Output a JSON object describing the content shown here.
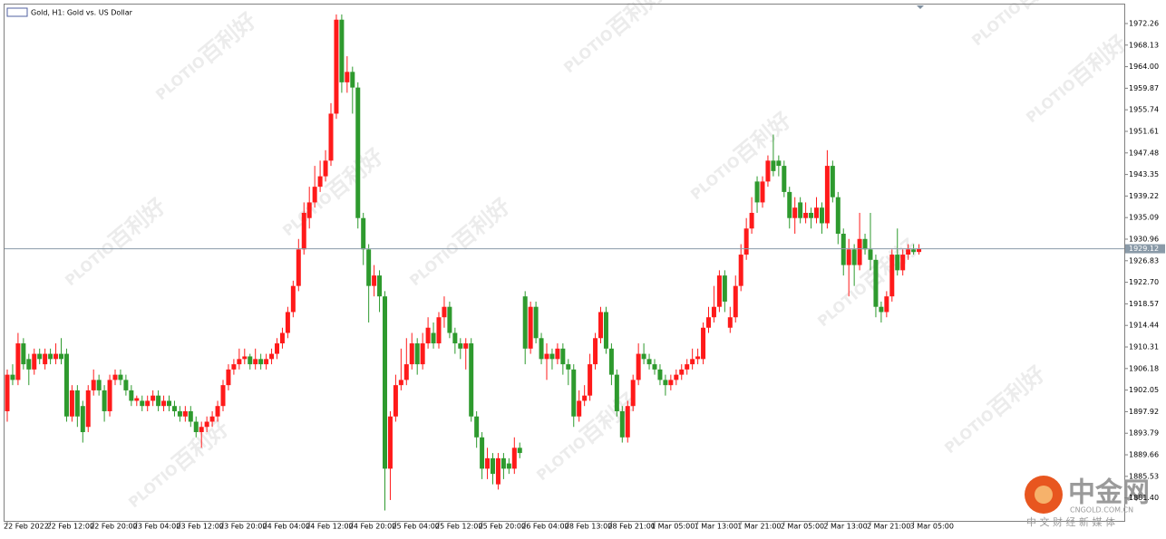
{
  "chart_data": {
    "type": "candlestick",
    "title": "Gold, H1: Gold vs. US Dollar",
    "categories": [
      "22 Feb 2022",
      null,
      null,
      null,
      null,
      null,
      null,
      null,
      "22 Feb 12:00",
      null,
      null,
      null,
      null,
      null,
      null,
      null,
      "22 Feb 20:00",
      null,
      null,
      null,
      null,
      null,
      null,
      null,
      "23 Feb 04:00",
      null,
      null,
      null,
      null,
      null,
      null,
      null,
      "23 Feb 12:00",
      null,
      null,
      null,
      null,
      null,
      null,
      null,
      "23 Feb 20:00",
      null,
      null,
      null,
      null,
      null,
      null,
      null,
      "24 Feb 04:00",
      null,
      null,
      null,
      null,
      null,
      null,
      null,
      "24 Feb 12:00",
      null,
      null,
      null,
      null,
      null,
      null,
      null,
      "24 Feb 20:00",
      null,
      null,
      null,
      null,
      null,
      null,
      null,
      "25 Feb 04:00",
      null,
      null,
      null,
      null,
      null,
      null,
      null,
      "25 Feb 12:00",
      null,
      null,
      null,
      null,
      null,
      null,
      null,
      "25 Feb 20:00",
      null,
      null,
      null,
      null,
      null,
      null,
      null,
      "26 Feb 04:00",
      null,
      null,
      null,
      null,
      null,
      null,
      null,
      "28 Feb 13:00",
      null,
      null,
      null,
      null,
      null,
      null,
      null,
      "28 Feb 21:00",
      null,
      null,
      null,
      null,
      null,
      null,
      null,
      "1 Mar 05:00",
      null,
      null,
      null,
      null,
      null,
      null,
      null,
      "1 Mar 13:00",
      null,
      null,
      null,
      null,
      null,
      null,
      null,
      "1 Mar 21:00",
      null,
      null,
      null,
      null,
      null,
      null,
      null,
      "2 Mar 05:00",
      null,
      null,
      null,
      null,
      null,
      null,
      null,
      "2 Mar 13:00",
      null,
      null,
      null,
      null,
      null,
      null,
      null,
      "2 Mar 21:00",
      null,
      null,
      null,
      null,
      null,
      null,
      null,
      "3 Mar 05:00",
      null
    ],
    "open": [
      1898,
      1905,
      1904,
      1911,
      1908,
      1906,
      1909,
      1907,
      1909,
      1908,
      1909,
      1909,
      1897,
      1902,
      1899,
      1895,
      1902,
      1904,
      1902,
      1898,
      1904,
      1905,
      1904,
      1902,
      1900,
      1900,
      1899,
      1900,
      1901,
      1899,
      1900,
      1899,
      1898,
      1897,
      1898,
      1896,
      1894,
      1895,
      1896,
      1897,
      1899,
      1903,
      1906,
      1907,
      1908,
      1908.5,
      1907,
      1908,
      1907,
      1908,
      1909,
      1911,
      1913,
      1917,
      1922,
      1929,
      1935,
      1938,
      1941,
      1943,
      1946,
      1955,
      1973,
      1961,
      1963,
      1960,
      1935,
      1929,
      1922,
      1924,
      1920,
      1887,
      1897,
      1903,
      1904,
      1907,
      1911,
      1907,
      1911,
      1913,
      1911,
      1916,
      1918,
      1913,
      1911,
      1910,
      1911,
      1897,
      1893,
      1887,
      1889,
      1884,
      1889,
      1888,
      1887,
      1891,
      1920,
      1910,
      1918,
      1912,
      1908,
      1909,
      1908,
      1910,
      1907,
      1906,
      1897,
      1900,
      1901,
      1907,
      1912,
      1917,
      1910,
      1905,
      1898,
      1893,
      1899,
      1904,
      1909,
      1908,
      1907,
      1906,
      1904,
      1903,
      1904,
      1905,
      1906,
      1907,
      1908,
      1908,
      1914,
      1916,
      1918,
      1924,
      1914,
      1916,
      1922,
      1928,
      1933,
      1942,
      1938,
      1942,
      1946,
      1946,
      1945,
      1940,
      1935,
      1938,
      1935,
      1936,
      1935,
      1937,
      1934,
      1945,
      1939,
      1932,
      1926,
      1929,
      1926,
      1931,
      1929,
      1927,
      1918,
      1917,
      1920,
      1928,
      1925,
      1928,
      1929,
      1928.5
    ],
    "high": [
      1906,
      1907,
      1913,
      1912,
      1909,
      1910,
      1910,
      1910,
      1910,
      1911,
      1912,
      1910,
      1903,
      1903,
      1900,
      1903,
      1906,
      1905,
      1903,
      1905,
      1906,
      1906,
      1905,
      1903,
      1901,
      1901,
      1901,
      1902,
      1902,
      1901,
      1901,
      1900,
      1899,
      1899,
      1899,
      1897,
      1896,
      1897,
      1898,
      1900,
      1904,
      1907,
      1908,
      1910,
      1910,
      1909,
      1910,
      1909,
      1909,
      1910,
      1912,
      1914,
      1918,
      1923,
      1931,
      1938,
      1941,
      1945,
      1946,
      1948,
      1957,
      1974,
      1974,
      1966,
      1964,
      1961,
      1936,
      1930,
      1926,
      1925,
      1921,
      1898,
      1905,
      1910,
      1912,
      1913,
      1912,
      1913,
      1916,
      1915,
      1917,
      1920,
      1919,
      1914,
      1912,
      1912,
      1912,
      1898,
      1894,
      1891,
      1890,
      1890,
      1890,
      1889,
      1893,
      1892,
      1921,
      1919,
      1919,
      1913,
      1911,
      1910,
      1911,
      1911,
      1908,
      1907,
      1902,
      1903,
      1909,
      1913,
      1918,
      1918,
      1911,
      1906,
      1899,
      1900,
      1905,
      1911,
      1911,
      1909,
      1908,
      1907,
      1905,
      1905,
      1906,
      1907,
      1908,
      1910,
      1910,
      1915,
      1918,
      1922,
      1925,
      1925,
      1918,
      1924,
      1930,
      1935,
      1939,
      1943,
      1943,
      1947,
      1951,
      1947,
      1946,
      1941,
      1939,
      1939,
      1938,
      1937,
      1939,
      1938,
      1948,
      1946,
      1940,
      1933,
      1931,
      1930,
      1936,
      1932,
      1936,
      1928,
      1919,
      1921,
      1929,
      1933,
      1929,
      1930,
      1930,
      1930
    ],
    "low": [
      1896,
      1903,
      1903,
      1906,
      1903,
      1905,
      1907,
      1906,
      1907,
      1907,
      1907,
      1896,
      1896,
      1895,
      1892,
      1894,
      1901,
      1901,
      1896,
      1897,
      1903,
      1903,
      1901,
      1899,
      1899,
      1898,
      1898,
      1899,
      1898,
      1898,
      1898,
      1897,
      1896,
      1896,
      1895,
      1893,
      1891,
      1894,
      1895,
      1896,
      1898,
      1902,
      1905,
      1906,
      1907,
      1906,
      1906,
      1906,
      1906,
      1907,
      1908,
      1910,
      1912,
      1916,
      1921,
      1928,
      1933,
      1937,
      1940,
      1942,
      1945,
      1954,
      1959,
      1959,
      1955,
      1933,
      1926,
      1915,
      1920,
      1917,
      1879,
      1881,
      1896,
      1902,
      1903,
      1906,
      1905,
      1906,
      1910,
      1910,
      1910,
      1914,
      1912,
      1909,
      1908,
      1906,
      1896,
      1891,
      1885,
      1885,
      1884,
      1883,
      1885,
      1886,
      1886,
      1889,
      1907,
      1909,
      1911,
      1907,
      1904,
      1906,
      1907,
      1905,
      1903,
      1895,
      1896,
      1899,
      1900,
      1906,
      1911,
      1909,
      1903,
      1897,
      1892,
      1892,
      1898,
      1903,
      1907,
      1906,
      1905,
      1903,
      1901,
      1902,
      1903,
      1904,
      1905,
      1906,
      1907,
      1907,
      1913,
      1915,
      1917,
      1917,
      1913,
      1915,
      1921,
      1927,
      1932,
      1936,
      1937,
      1941,
      1943,
      1943,
      1939,
      1933,
      1932,
      1934,
      1934,
      1933,
      1934,
      1932,
      1933,
      1938,
      1930,
      1924,
      1920,
      1922,
      1925,
      1928,
      1925,
      1916,
      1915,
      1916,
      1919,
      1924,
      1924,
      1927,
      1928,
      1928
    ],
    "close": [
      1905,
      1904,
      1911,
      1907,
      1906,
      1909,
      1908,
      1909,
      1908,
      1909,
      1908,
      1897,
      1902,
      1897,
      1894,
      1902,
      1904,
      1902,
      1898,
      1904,
      1905,
      1904,
      1902,
      1900,
      1900.5,
      1899,
      1900,
      1901,
      1899,
      1900,
      1899,
      1898,
      1897,
      1898,
      1896,
      1894,
      1895,
      1896,
      1897,
      1899,
      1903,
      1906,
      1907,
      1908,
      1908.5,
      1907,
      1908,
      1907,
      1908,
      1909,
      1911,
      1913,
      1917,
      1922,
      1929,
      1936,
      1938,
      1941,
      1943,
      1946,
      1955,
      1973,
      1961,
      1963,
      1960,
      1935,
      1929,
      1922,
      1924,
      1920,
      1887,
      1897,
      1903,
      1904,
      1907,
      1911,
      1907,
      1911,
      1914,
      1911,
      1916,
      1918,
      1913,
      1911,
      1910,
      1911,
      1897,
      1893,
      1887,
      1889,
      1886,
      1889,
      1887,
      1887,
      1891,
      1890,
      1910,
      1918,
      1912,
      1908,
      1909,
      1908,
      1910,
      1907,
      1906,
      1897,
      1900,
      1901,
      1907,
      1912,
      1917,
      1910,
      1905,
      1898,
      1893,
      1899,
      1904,
      1909,
      1908,
      1907,
      1906,
      1904,
      1903,
      1904,
      1905,
      1906,
      1907,
      1908,
      1908.5,
      1914,
      1916,
      1918,
      1924,
      1919,
      1916,
      1922,
      1928,
      1933,
      1936,
      1938,
      1942,
      1946,
      1944,
      1945,
      1940,
      1935,
      1937,
      1935,
      1936,
      1935,
      1937,
      1934,
      1945,
      1939,
      1932,
      1926,
      1929,
      1926,
      1931,
      1929,
      1927,
      1918,
      1917,
      1920,
      1928,
      1925,
      1928,
      1929,
      1928.5,
      1929.12
    ],
    "up_color": "#ff1a1a",
    "down_color": "#2e9a2e",
    "ylim": [
      1877.0,
      1975.9
    ],
    "yticks": [
      1972.26,
      1968.13,
      {
        "value": 1964,
        "label": "1964.00"
      },
      1959.87,
      1955.74,
      1951.61,
      1947.48,
      1943.35,
      1939.22,
      1935.09,
      1930.96,
      1926.83,
      {
        "value": 1922.7,
        "label": "1922.70"
      },
      1918.57,
      1914.44,
      1910.31,
      1906.18,
      1902.05,
      1897.92,
      1893.79,
      1889.66,
      1885.53,
      {
        "value": 1881.4,
        "label": "1881.40"
      }
    ],
    "last_price": 1929.12
  },
  "watermark": {
    "brand": "PLOTIO",
    "name": "百利好",
    "logo": "中金网",
    "site": "CNGOLD.COM.CN",
    "slogan": "中 文 财 经 新 媒 体"
  }
}
